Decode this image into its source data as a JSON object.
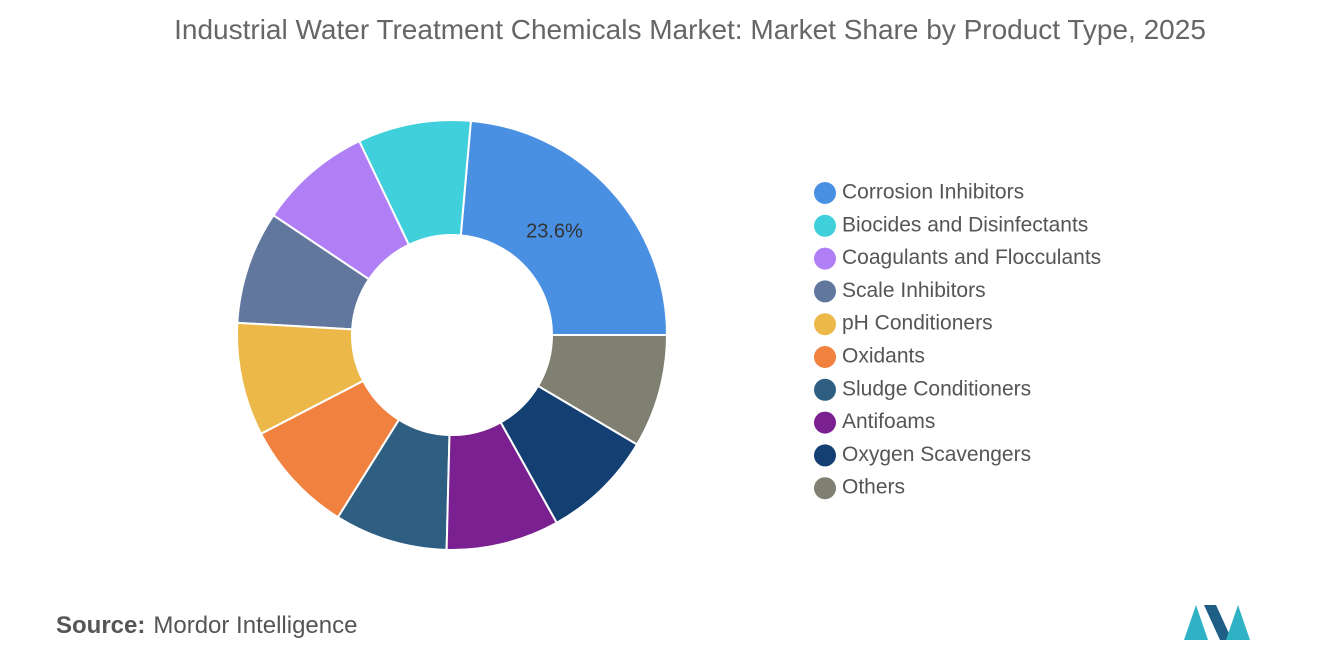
{
  "chart_data": {
    "type": "pie",
    "title": "Industrial Water Treatment Chemicals Market: Market Share by Product Type, 2025",
    "categories": [
      "Corrosion Inhibitors",
      "Biocides and Disinfectants",
      "Coagulants and Flocculants",
      "Scale Inhibitors",
      "pH Conditioners",
      "Oxidants",
      "Sludge Conditioners",
      "Antifoams",
      "Oxygen Scavengers",
      "Others"
    ],
    "values": [
      23.6,
      8.5,
      8.5,
      8.5,
      8.5,
      8.5,
      8.5,
      8.5,
      8.4,
      8.5
    ],
    "value_labels": [
      "23.6%",
      null,
      null,
      null,
      null,
      null,
      null,
      null,
      null,
      null
    ],
    "colors": [
      "#4a90e2",
      "#3fd0dc",
      "#b07ff5",
      "#62779e",
      "#ecb84a",
      "#f0813e",
      "#2e5f82",
      "#7b2090",
      "#133f73",
      "#7f7f72"
    ],
    "donut": true
  },
  "source": {
    "label": "Source:",
    "text": "Mordor Intelligence"
  }
}
